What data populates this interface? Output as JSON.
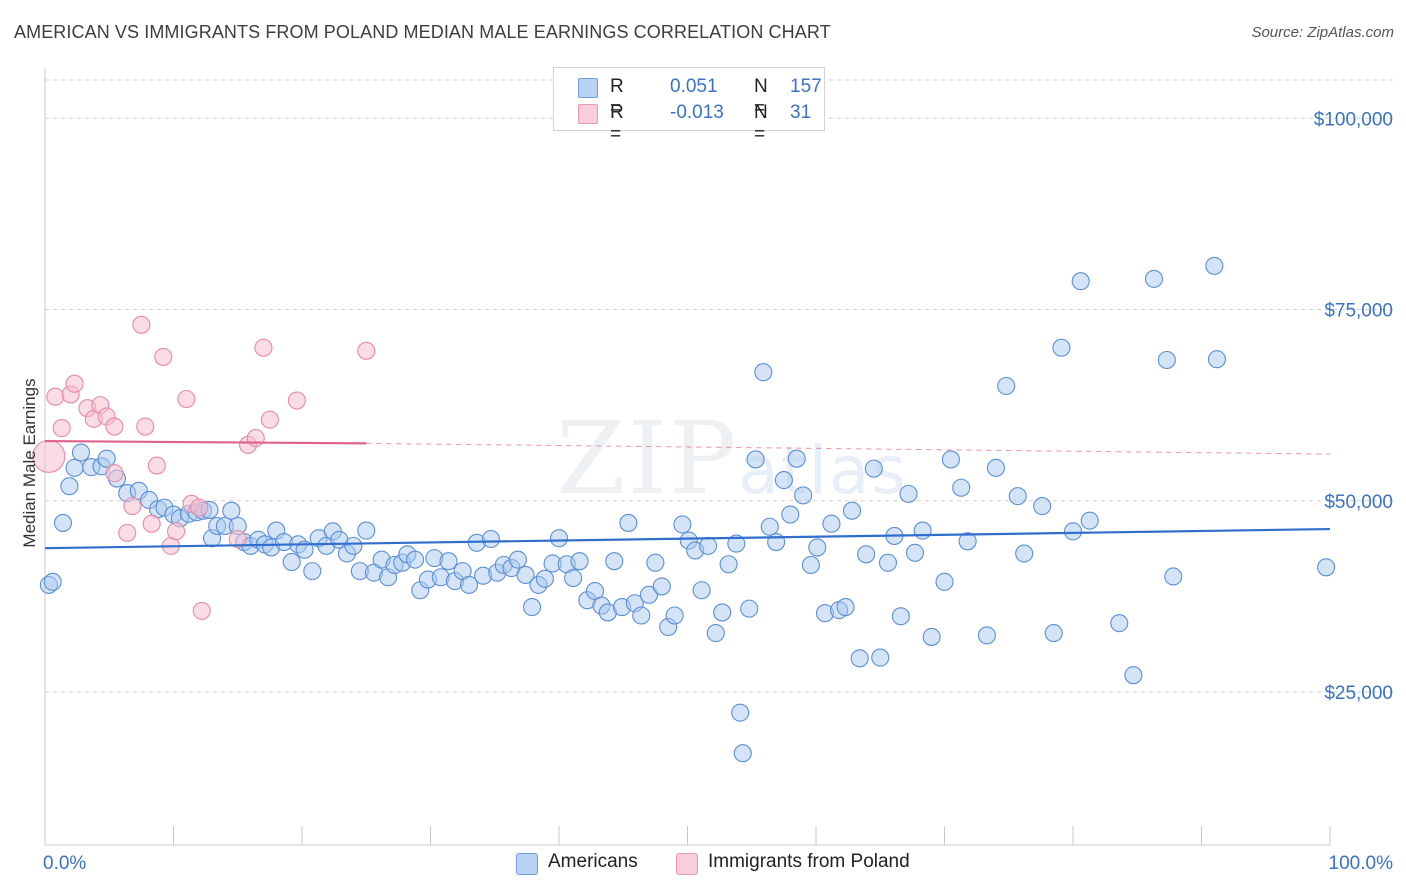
{
  "header": {
    "title": "AMERICAN VS IMMIGRANTS FROM POLAND MEDIAN MALE EARNINGS CORRELATION CHART",
    "source": "Source: ZipAtlas.com"
  },
  "watermark": {
    "main": "ZIP",
    "small": "atlas"
  },
  "legend": {
    "rows": [
      {
        "r_label": "R =",
        "r_value": "0.051",
        "n_label": "N =",
        "n_value": "157"
      },
      {
        "r_label": "R =",
        "r_value": "-0.013",
        "n_label": "N =",
        "n_value": "31"
      }
    ]
  },
  "bottom_legend": {
    "americans": "Americans",
    "poland": "Immigrants from Poland"
  },
  "colors": {
    "americans_fill": "#a9c9ee",
    "americans_stroke": "#5b8fd6",
    "americans_line": "#2f6fcb",
    "poland_fill": "#f6bfd0",
    "poland_stroke": "#e88aa7",
    "poland_line": "#e0628a",
    "grid": "#d0d0d0",
    "tick_label": "#3a72c4"
  },
  "chart_data": {
    "type": "scatter",
    "title": "AMERICAN VS IMMIGRANTS FROM POLAND MEDIAN MALE EARNINGS CORRELATION CHART",
    "xlabel": "",
    "ylabel": "Median Male Earnings",
    "x_tick_labels": [
      "0.0%",
      "100.0%"
    ],
    "y_ticks": [
      {
        "value": 25000,
        "label": "$25,000"
      },
      {
        "value": 50000,
        "label": "$50,000"
      },
      {
        "value": 75000,
        "label": "$75,000"
      },
      {
        "value": 100000,
        "label": "$100,000"
      }
    ],
    "xlim": [
      0,
      100
    ],
    "ylim": [
      5000,
      105000
    ],
    "grid": "horizontal dashed",
    "legend_position": "top-center",
    "series": [
      {
        "name": "Americans",
        "r": 0.051,
        "n": 157,
        "trend": {
          "x": [
            0,
            100
          ],
          "y": [
            43800,
            46300
          ]
        },
        "points": [
          [
            0.3,
            39000
          ],
          [
            0.6,
            39400
          ],
          [
            1.4,
            47100
          ],
          [
            1.9,
            51900
          ],
          [
            2.3,
            54300
          ],
          [
            2.8,
            56300
          ],
          [
            3.6,
            54400
          ],
          [
            4.4,
            54500
          ],
          [
            4.8,
            55500
          ],
          [
            5.6,
            52900
          ],
          [
            6.4,
            51000
          ],
          [
            7.3,
            51300
          ],
          [
            8.1,
            50100
          ],
          [
            8.8,
            48900
          ],
          [
            9.3,
            49100
          ],
          [
            10.0,
            48200
          ],
          [
            10.5,
            47700
          ],
          [
            11.2,
            48300
          ],
          [
            11.8,
            48500
          ],
          [
            12.3,
            48700
          ],
          [
            12.8,
            48800
          ],
          [
            13.0,
            45100
          ],
          [
            13.4,
            46700
          ],
          [
            14.0,
            46700
          ],
          [
            14.5,
            48700
          ],
          [
            15.0,
            46700
          ],
          [
            15.5,
            44600
          ],
          [
            16.0,
            44100
          ],
          [
            16.6,
            44900
          ],
          [
            17.1,
            44300
          ],
          [
            17.6,
            43900
          ],
          [
            18.0,
            46100
          ],
          [
            18.6,
            44600
          ],
          [
            19.2,
            42000
          ],
          [
            19.7,
            44300
          ],
          [
            20.2,
            43600
          ],
          [
            20.8,
            40800
          ],
          [
            21.3,
            45100
          ],
          [
            21.9,
            44100
          ],
          [
            22.4,
            46000
          ],
          [
            22.9,
            44900
          ],
          [
            23.5,
            43100
          ],
          [
            24.0,
            44100
          ],
          [
            24.5,
            40800
          ],
          [
            25.0,
            46100
          ],
          [
            25.6,
            40600
          ],
          [
            26.2,
            42300
          ],
          [
            26.7,
            40000
          ],
          [
            27.2,
            41600
          ],
          [
            27.8,
            41900
          ],
          [
            28.2,
            43000
          ],
          [
            28.8,
            42300
          ],
          [
            29.2,
            38300
          ],
          [
            29.8,
            39700
          ],
          [
            30.3,
            42500
          ],
          [
            30.8,
            40000
          ],
          [
            31.4,
            42100
          ],
          [
            31.9,
            39500
          ],
          [
            32.5,
            40800
          ],
          [
            33.0,
            39000
          ],
          [
            33.6,
            44500
          ],
          [
            34.1,
            40200
          ],
          [
            34.7,
            45000
          ],
          [
            35.2,
            40600
          ],
          [
            35.7,
            41600
          ],
          [
            36.3,
            41200
          ],
          [
            36.8,
            42300
          ],
          [
            37.4,
            40300
          ],
          [
            37.9,
            36100
          ],
          [
            38.4,
            39000
          ],
          [
            38.9,
            39800
          ],
          [
            39.5,
            41800
          ],
          [
            40.0,
            45100
          ],
          [
            40.6,
            41700
          ],
          [
            41.1,
            39900
          ],
          [
            41.6,
            42100
          ],
          [
            42.2,
            37000
          ],
          [
            42.8,
            38200
          ],
          [
            43.3,
            36300
          ],
          [
            43.8,
            35400
          ],
          [
            44.3,
            42100
          ],
          [
            44.9,
            36100
          ],
          [
            45.4,
            47100
          ],
          [
            45.9,
            36600
          ],
          [
            46.4,
            35000
          ],
          [
            47.0,
            37700
          ],
          [
            47.5,
            41900
          ],
          [
            48.0,
            38800
          ],
          [
            48.5,
            33500
          ],
          [
            49.0,
            35000
          ],
          [
            49.6,
            46900
          ],
          [
            50.1,
            44800
          ],
          [
            50.6,
            43500
          ],
          [
            51.1,
            38300
          ],
          [
            51.6,
            44100
          ],
          [
            52.2,
            32700
          ],
          [
            52.7,
            35400
          ],
          [
            53.2,
            41700
          ],
          [
            53.8,
            44400
          ],
          [
            54.3,
            17000
          ],
          [
            54.8,
            35900
          ],
          [
            55.3,
            55400
          ],
          [
            55.9,
            66800
          ],
          [
            56.4,
            46600
          ],
          [
            56.9,
            44600
          ],
          [
            57.5,
            52700
          ],
          [
            58.0,
            48200
          ],
          [
            58.5,
            55500
          ],
          [
            59.0,
            50700
          ],
          [
            59.6,
            41600
          ],
          [
            60.1,
            43900
          ],
          [
            60.7,
            35300
          ],
          [
            61.2,
            47000
          ],
          [
            61.8,
            35700
          ],
          [
            62.3,
            36100
          ],
          [
            62.8,
            48700
          ],
          [
            63.4,
            29400
          ],
          [
            63.9,
            43000
          ],
          [
            64.5,
            54200
          ],
          [
            65.0,
            29500
          ],
          [
            65.6,
            41900
          ],
          [
            66.1,
            45400
          ],
          [
            66.6,
            34900
          ],
          [
            67.2,
            50900
          ],
          [
            67.7,
            43200
          ],
          [
            68.3,
            46100
          ],
          [
            69.0,
            32200
          ],
          [
            70.0,
            39400
          ],
          [
            70.5,
            55400
          ],
          [
            71.3,
            51700
          ],
          [
            71.8,
            44700
          ],
          [
            73.3,
            32400
          ],
          [
            74.0,
            54300
          ],
          [
            74.8,
            65000
          ],
          [
            75.7,
            50600
          ],
          [
            76.2,
            43100
          ],
          [
            77.6,
            49300
          ],
          [
            78.5,
            32700
          ],
          [
            79.1,
            70000
          ],
          [
            80.0,
            46000
          ],
          [
            80.6,
            78700
          ],
          [
            81.3,
            47400
          ],
          [
            83.6,
            34000
          ],
          [
            84.7,
            27200
          ],
          [
            86.3,
            79000
          ],
          [
            87.3,
            68400
          ],
          [
            87.8,
            40100
          ],
          [
            91.0,
            80700
          ],
          [
            91.2,
            68500
          ],
          [
            99.7,
            41300
          ],
          [
            54.1,
            22300
          ]
        ]
      },
      {
        "name": "Immigrants from Poland",
        "r": -0.013,
        "n": 31,
        "trend": {
          "x": [
            0,
            25
          ],
          "y": [
            57800,
            57500
          ]
        },
        "trend_extension": {
          "x": [
            25,
            100
          ],
          "y": [
            57500,
            56100
          ]
        },
        "points": [
          [
            0.3,
            55800
          ],
          [
            0.8,
            63600
          ],
          [
            1.3,
            59500
          ],
          [
            2.0,
            63900
          ],
          [
            2.3,
            65300
          ],
          [
            3.3,
            62100
          ],
          [
            3.8,
            60700
          ],
          [
            4.3,
            62500
          ],
          [
            4.8,
            61000
          ],
          [
            5.4,
            59700
          ],
          [
            5.4,
            53600
          ],
          [
            6.4,
            45800
          ],
          [
            6.8,
            49300
          ],
          [
            7.5,
            73000
          ],
          [
            7.8,
            59700
          ],
          [
            8.3,
            47000
          ],
          [
            8.7,
            54600
          ],
          [
            9.2,
            68800
          ],
          [
            9.8,
            44100
          ],
          [
            10.2,
            46000
          ],
          [
            11.0,
            63300
          ],
          [
            11.4,
            49600
          ],
          [
            12.2,
            35600
          ],
          [
            15.0,
            45000
          ],
          [
            15.8,
            57300
          ],
          [
            16.4,
            58200
          ],
          [
            17.0,
            70000
          ],
          [
            17.5,
            60600
          ],
          [
            19.6,
            63100
          ],
          [
            25.0,
            69600
          ],
          [
            12.0,
            49100
          ]
        ]
      }
    ]
  }
}
